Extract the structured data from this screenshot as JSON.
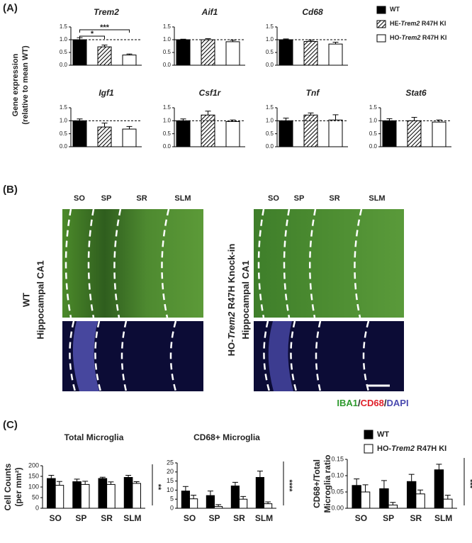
{
  "panel_a": {
    "label": "(A)",
    "y_label": [
      "Gene expression",
      "(relative to mean WT)"
    ],
    "legend": [
      {
        "parts": [
          "WT"
        ],
        "fill": "#000000"
      },
      {
        "parts": [
          "HE-",
          "Trem2",
          " R47H KI"
        ],
        "fill": "hatch"
      },
      {
        "parts": [
          "HO-",
          "Trem2",
          " R47H KI"
        ],
        "fill": "#ffffff"
      }
    ]
  },
  "panel_b": {
    "label": "(B)",
    "layers": [
      "SO",
      "SP",
      "SR",
      "SLM"
    ],
    "left_labels": [
      "WT",
      "Hippocampal CA1"
    ],
    "right_labels": [
      [
        "HO-",
        "Trem2",
        " R47H Knock-in"
      ],
      [
        "Hippocampal CA1"
      ]
    ],
    "stains": [
      {
        "text": "IBA1",
        "color": "#2e9a2e"
      },
      {
        "text": "/",
        "color": "#222222"
      },
      {
        "text": "CD68",
        "color": "#e0202a"
      },
      {
        "text": "/",
        "color": "#222222"
      },
      {
        "text": "DAPI",
        "color": "#4a4ab0"
      }
    ]
  },
  "panel_c": {
    "label": "(C)",
    "legend": [
      {
        "parts": [
          "WT"
        ],
        "fill": "#000000"
      },
      {
        "parts": [
          "HO-",
          "Trem2",
          " R47H KI"
        ],
        "fill": "#ffffff"
      }
    ]
  },
  "chart_data": [
    {
      "type": "bar",
      "title": "Trem2",
      "values": [
        1.0,
        0.72,
        0.4
      ],
      "errors": [
        0.08,
        0.07,
        0.04
      ],
      "ylim": [
        0,
        1.5
      ],
      "yticks": [
        {
          "value": 0,
          "label": "0.0"
        },
        {
          "value": 0.5,
          "label": "0.5"
        },
        {
          "value": 1,
          "label": "1.0"
        },
        {
          "value": 1.5,
          "label": "1.5"
        }
      ],
      "reference_line": 1,
      "annotations": [
        "*",
        "***"
      ]
    },
    {
      "type": "bar",
      "title": "Aif1",
      "values": [
        1.0,
        1.0,
        0.92
      ],
      "errors": [
        0.02,
        0.04,
        0.06
      ],
      "ylim": [
        0,
        1.5
      ],
      "yticks": [
        {
          "value": 0,
          "label": "0.0"
        },
        {
          "value": 0.5,
          "label": "0.5"
        },
        {
          "value": 1,
          "label": "1.0"
        },
        {
          "value": 1.5,
          "label": "1.5"
        }
      ],
      "reference_line": 1
    },
    {
      "type": "bar",
      "title": "Cd68",
      "values": [
        1.0,
        0.93,
        0.83
      ],
      "errors": [
        0.03,
        0.05,
        0.07
      ],
      "ylim": [
        0,
        1.5
      ],
      "yticks": [
        {
          "value": 0,
          "label": "0.0"
        },
        {
          "value": 0.5,
          "label": "0.5"
        },
        {
          "value": 1,
          "label": "1.0"
        },
        {
          "value": 1.5,
          "label": "1.5"
        }
      ],
      "reference_line": 1
    },
    {
      "type": "bar",
      "title": "Igf1",
      "values": [
        1.0,
        0.76,
        0.68
      ],
      "errors": [
        0.07,
        0.15,
        0.1
      ],
      "ylim": [
        0,
        1.5
      ],
      "yticks": [
        {
          "value": 0,
          "label": "0.0"
        },
        {
          "value": 0.5,
          "label": "0.5"
        },
        {
          "value": 1,
          "label": "1.0"
        },
        {
          "value": 1.5,
          "label": "1.5"
        }
      ],
      "reference_line": 1
    },
    {
      "type": "bar",
      "title": "Csf1r",
      "values": [
        1.0,
        1.22,
        0.97
      ],
      "errors": [
        0.07,
        0.15,
        0.06
      ],
      "ylim": [
        0,
        1.5
      ],
      "yticks": [
        {
          "value": 0,
          "label": "0.0"
        },
        {
          "value": 0.5,
          "label": "0.5"
        },
        {
          "value": 1,
          "label": "1.0"
        },
        {
          "value": 1.5,
          "label": "1.5"
        }
      ],
      "reference_line": 1
    },
    {
      "type": "bar",
      "title": "Tnf",
      "values": [
        1.0,
        1.22,
        1.03
      ],
      "errors": [
        0.1,
        0.08,
        0.2
      ],
      "ylim": [
        0,
        1.5
      ],
      "yticks": [
        {
          "value": 0,
          "label": "0.0"
        },
        {
          "value": 0.5,
          "label": "0.5"
        },
        {
          "value": 1,
          "label": "1.0"
        },
        {
          "value": 1.5,
          "label": "1.5"
        }
      ],
      "reference_line": 1
    },
    {
      "type": "bar",
      "title": "Stat6",
      "values": [
        1.0,
        1.0,
        0.95
      ],
      "errors": [
        0.08,
        0.13,
        0.08
      ],
      "ylim": [
        0,
        1.5
      ],
      "yticks": [
        {
          "value": 0,
          "label": "0.0"
        },
        {
          "value": 0.5,
          "label": "0.5"
        },
        {
          "value": 1,
          "label": "1.0"
        },
        {
          "value": 1.5,
          "label": "1.5"
        }
      ],
      "reference_line": 1
    },
    {
      "type": "grouped_bar",
      "title": "Total Microglia",
      "y_label": [
        "Cell Counts",
        "(per mm²)"
      ],
      "categories": [
        "SO",
        "SP",
        "SR",
        "SLM"
      ],
      "series": [
        {
          "color": "#000000",
          "values": [
            140,
            125,
            140,
            145
          ],
          "errors": [
            15,
            12,
            6,
            10
          ]
        },
        {
          "color": "#ffffff",
          "values": [
            108,
            112,
            112,
            117
          ],
          "errors": [
            18,
            15,
            12,
            8
          ]
        }
      ],
      "ylim": [
        0,
        200
      ],
      "yticks": [
        0,
        50,
        100,
        150,
        200
      ],
      "significance": "**"
    },
    {
      "type": "grouped_bar",
      "title": "CD68+ Microglia",
      "categories": [
        "SO",
        "SP",
        "SR",
        "SLM"
      ],
      "series": [
        {
          "color": "#000000",
          "values": [
            9.5,
            7,
            12.3,
            17
          ],
          "errors": [
            2.5,
            2.5,
            2,
            3.5
          ]
        },
        {
          "color": "#ffffff",
          "values": [
            5.2,
            1,
            5,
            2.5
          ],
          "errors": [
            2,
            1,
            1.5,
            1
          ]
        }
      ],
      "ylim": [
        0,
        25
      ],
      "yticks": [
        0,
        5,
        10,
        15,
        20,
        25
      ],
      "significance": "****"
    },
    {
      "type": "grouped_bar",
      "y_label": [
        "CD68+/Total",
        "Microglia ratio"
      ],
      "categories": [
        "SO",
        "SP",
        "SR",
        "SLM"
      ],
      "series": [
        {
          "color": "#000000",
          "values": [
            0.07,
            0.06,
            0.082,
            0.118
          ],
          "errors": [
            0.02,
            0.025,
            0.022,
            0.017
          ]
        },
        {
          "color": "#ffffff",
          "values": [
            0.05,
            0.01,
            0.044,
            0.028
          ],
          "errors": [
            0.022,
            0.008,
            0.012,
            0.012
          ]
        }
      ],
      "ylim": [
        0,
        0.15
      ],
      "yticks": [
        {
          "value": 0,
          "label": "0.00"
        },
        {
          "value": 0.05,
          "label": "0.05"
        },
        {
          "value": 0.1,
          "label": "0.10"
        },
        {
          "value": 0.15,
          "label": "0.15"
        }
      ],
      "significance": "***"
    }
  ]
}
